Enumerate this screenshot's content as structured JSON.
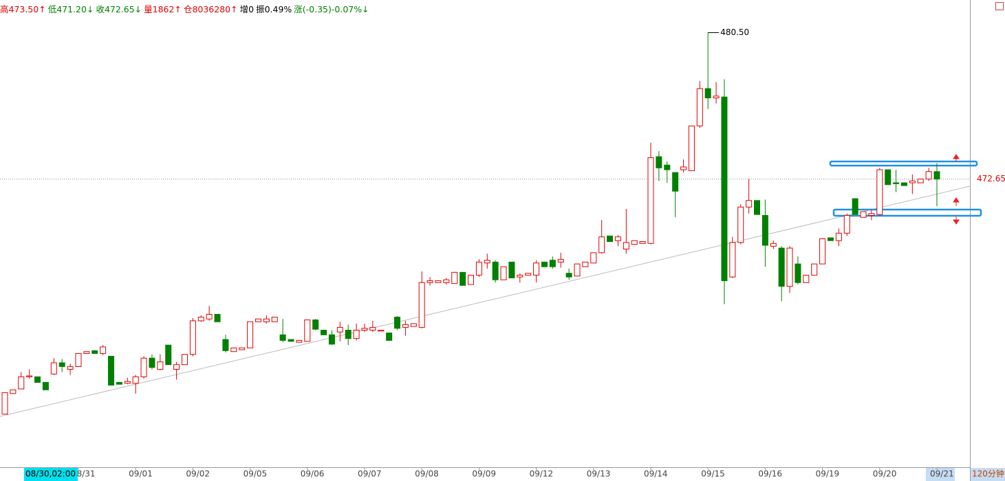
{
  "chart_data": {
    "type": "candlestick",
    "header": [
      {
        "text": "高473.50↑",
        "color": "#e00000"
      },
      {
        "text": "低471.20↓",
        "color": "#008000"
      },
      {
        "text": "收472.65↓",
        "color": "#008000"
      },
      {
        "text": "量1862↑",
        "color": "#e00000"
      },
      {
        "text": "仓8036280↑",
        "color": "#e00000"
      },
      {
        "text": "增0",
        "color": "#000000"
      },
      {
        "text": "振0.49%",
        "color": "#000000"
      },
      {
        "text": "涨(-0.35)-0.07%↓",
        "color": "#008000"
      }
    ],
    "categories": [
      null,
      null,
      null,
      null,
      null,
      null,
      null,
      null,
      null,
      "08/31",
      null,
      null,
      null,
      null,
      null,
      null,
      "09/01",
      null,
      null,
      null,
      null,
      null,
      null,
      "09/02",
      null,
      null,
      null,
      null,
      null,
      null,
      "09/05",
      null,
      null,
      null,
      null,
      null,
      null,
      "09/06",
      null,
      null,
      null,
      null,
      null,
      null,
      "09/07",
      null,
      null,
      null,
      null,
      null,
      null,
      "09/08",
      null,
      null,
      null,
      null,
      null,
      null,
      "09/09",
      null,
      null,
      null,
      null,
      null,
      null,
      "09/12",
      null,
      null,
      null,
      null,
      null,
      null,
      "09/13",
      null,
      null,
      null,
      null,
      null,
      null,
      "09/14",
      null,
      null,
      null,
      null,
      null,
      null,
      "09/15",
      null,
      null,
      null,
      null,
      null,
      null,
      "09/16",
      null,
      null,
      null,
      null,
      null,
      null,
      "09/19",
      null,
      null,
      null,
      null,
      null,
      null,
      "09/20",
      null,
      null,
      null,
      null,
      null,
      null,
      "09/21"
    ],
    "open": [
      460.05,
      461.15,
      461.4,
      462.05,
      462.05,
      461.75,
      462.2,
      462.8,
      462.45,
      462.6,
      463.3,
      463.45,
      463.3,
      463.15,
      461.75,
      461.7,
      461.7,
      462.05,
      463.05,
      462.45,
      463.75,
      462.45,
      462.7,
      463.25,
      465.05,
      465.15,
      465.4,
      464.05,
      463.4,
      463.5,
      463.6,
      465.0,
      465.0,
      465.0,
      464.3,
      464.05,
      463.9,
      463.95,
      465.1,
      464.55,
      464.3,
      464.45,
      464.55,
      464.1,
      464.55,
      464.55,
      464.5,
      464.4,
      465.25,
      464.7,
      464.75,
      464.7,
      467.1,
      467.1,
      467.1,
      467.05,
      467.65,
      467.0,
      467.5,
      468.15,
      468.2,
      467.25,
      468.2,
      467.4,
      467.5,
      467.5,
      468.2,
      468.3,
      468.2,
      467.6,
      467.45,
      467.95,
      468.15,
      468.7,
      469.6,
      469.35,
      468.9,
      469.15,
      469.2,
      469.2,
      473.85,
      473.4,
      473.0,
      473.15,
      473.1,
      475.5,
      477.5,
      477.0,
      477.05,
      467.4,
      469.25,
      471.15,
      471.5,
      470.7,
      469.05,
      468.95,
      466.9,
      468.1,
      467.1,
      467.5,
      468.1,
      469.5,
      469.35,
      469.75,
      471.6,
      470.6,
      470.7,
      470.75,
      473.15,
      472.45,
      472.45,
      472.45,
      472.45,
      472.65,
      473.05
    ],
    "high": [
      461.2,
      461.35,
      462.3,
      462.45,
      462.05,
      461.75,
      463.05,
      463.0,
      462.75,
      463.3,
      463.4,
      463.45,
      463.75,
      463.15,
      461.75,
      462.0,
      462.15,
      463.15,
      463.25,
      463.25,
      463.75,
      462.85,
      463.25,
      465.2,
      465.35,
      465.85,
      465.4,
      464.3,
      463.6,
      463.6,
      465.0,
      465.15,
      465.35,
      465.25,
      465.15,
      464.05,
      464.0,
      465.1,
      465.15,
      464.55,
      464.55,
      465.0,
      464.85,
      464.9,
      464.9,
      465.05,
      464.55,
      464.4,
      465.3,
      465.05,
      464.9,
      467.7,
      467.4,
      467.2,
      467.35,
      467.65,
      467.65,
      467.5,
      468.35,
      468.65,
      468.3,
      467.95,
      468.2,
      467.6,
      467.6,
      468.3,
      468.2,
      468.5,
      468.7,
      467.85,
      468.1,
      468.2,
      468.7,
      470.45,
      469.6,
      469.65,
      471.05,
      469.35,
      469.3,
      474.6,
      474.15,
      473.6,
      473.0,
      473.7,
      475.5,
      477.9,
      480.5,
      477.85,
      478.0,
      469.55,
      471.3,
      472.65,
      471.5,
      471.55,
      469.35,
      469.05,
      469.05,
      468.5,
      467.5,
      468.1,
      469.45,
      469.5,
      470.0,
      470.8,
      471.6,
      470.9,
      471.0,
      473.25,
      473.15,
      473.15,
      472.45,
      472.9,
      472.65,
      473.25,
      473.5
    ],
    "low": [
      460.05,
      461.15,
      461.4,
      461.95,
      461.75,
      461.35,
      462.15,
      462.3,
      462.15,
      462.6,
      463.3,
      463.3,
      463.2,
      461.6,
      461.65,
      461.65,
      461.15,
      461.95,
      462.45,
      462.4,
      462.7,
      461.9,
      462.7,
      463.15,
      465.0,
      465.05,
      465.0,
      463.35,
      463.4,
      463.5,
      463.6,
      465.0,
      464.9,
      465.0,
      463.9,
      463.95,
      463.9,
      463.95,
      464.55,
      464.3,
      463.75,
      463.95,
      463.75,
      464.0,
      464.45,
      464.45,
      464.5,
      464.0,
      464.55,
      464.25,
      464.75,
      464.65,
      466.95,
      467.1,
      467.0,
      467.05,
      466.95,
      467.0,
      467.4,
      467.85,
      467.1,
      467.25,
      467.35,
      467.1,
      467.5,
      467.1,
      467.95,
      467.85,
      467.9,
      467.25,
      467.45,
      467.95,
      468.15,
      468.65,
      469.3,
      469.05,
      468.65,
      469.15,
      469.2,
      469.15,
      472.55,
      472.45,
      470.6,
      473.0,
      473.1,
      475.4,
      476.4,
      476.7,
      465.95,
      467.35,
      469.15,
      470.8,
      470.75,
      467.95,
      468.9,
      466.1,
      466.55,
      467.0,
      467.1,
      467.5,
      468.1,
      469.35,
      469.05,
      469.6,
      470.75,
      470.6,
      470.45,
      470.7,
      472.35,
      471.95,
      472.3,
      471.85,
      472.45,
      472.55,
      471.2
    ],
    "close": [
      461.2,
      461.35,
      462.05,
      462.1,
      461.75,
      461.35,
      462.8,
      462.6,
      462.6,
      463.3,
      463.4,
      463.3,
      463.65,
      461.6,
      461.65,
      461.8,
      462.05,
      463.05,
      462.55,
      462.85,
      462.7,
      462.7,
      463.25,
      465.05,
      465.25,
      465.4,
      465.0,
      463.45,
      463.6,
      463.6,
      465.0,
      465.15,
      465.15,
      465.25,
      464.0,
      463.95,
      464.0,
      465.1,
      464.6,
      464.3,
      463.8,
      464.7,
      464.1,
      464.55,
      464.65,
      464.7,
      464.55,
      464.0,
      464.65,
      464.85,
      464.9,
      467.1,
      467.2,
      467.2,
      467.25,
      467.65,
      466.95,
      467.5,
      468.2,
      468.3,
      467.25,
      467.95,
      467.35,
      467.5,
      467.6,
      468.15,
      467.95,
      467.95,
      468.35,
      467.4,
      468.1,
      468.2,
      468.7,
      469.55,
      469.3,
      469.55,
      469.25,
      469.35,
      469.3,
      473.8,
      473.25,
      473.15,
      472.0,
      473.3,
      475.5,
      477.5,
      477.0,
      477.1,
      467.2,
      469.25,
      471.15,
      471.5,
      470.75,
      469.1,
      469.2,
      466.9,
      468.95,
      467.1,
      467.5,
      468.1,
      469.45,
      469.35,
      469.75,
      470.7,
      470.75,
      470.9,
      470.8,
      473.15,
      472.35,
      472.4,
      472.3,
      472.55,
      472.65,
      473.05,
      472.65
    ],
    "up_color": "#e00000",
    "down_color": "#008000",
    "ylim": [
      457.2,
      482.25
    ],
    "max_label": {
      "value": 480.5,
      "label": "480.50"
    },
    "last_price": 472.65,
    "cursor_label": "08/30,02:00",
    "period": "120分钟"
  }
}
